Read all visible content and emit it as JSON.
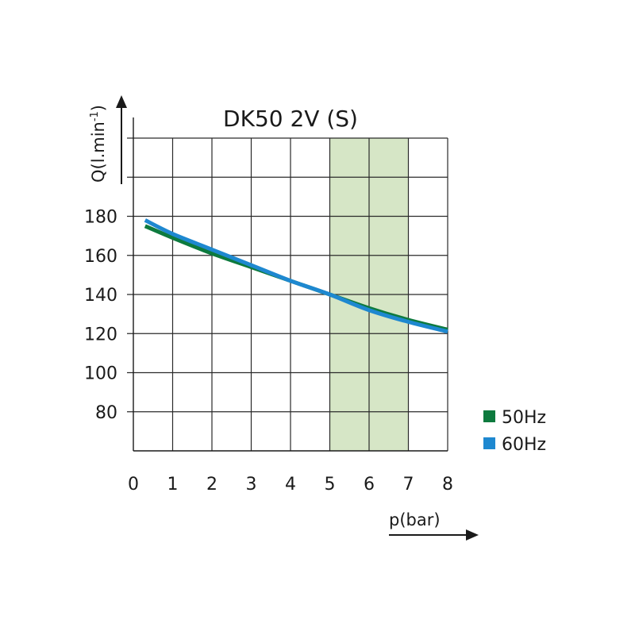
{
  "chart_data": {
    "type": "line",
    "title": "DK50 2V (S)",
    "ylabel": "Q(l.min",
    "ylabel_sup": "-1",
    "ylabel_close": ")",
    "xlabel": "p(bar)",
    "x_ticks": [
      "0",
      "1",
      "2",
      "3",
      "4",
      "5",
      "6",
      "7",
      "8"
    ],
    "y_ticks": [
      "80",
      "100",
      "120",
      "140",
      "160",
      "180"
    ],
    "xlim": [
      0,
      8
    ],
    "ylim": [
      60,
      220
    ],
    "grid": true,
    "highlight_band": {
      "x_from": 5,
      "x_to": 7,
      "color": "#d6e6c6"
    },
    "legend_position": "right",
    "series": [
      {
        "name": "50Hz",
        "color": "#0d7a3e",
        "x": [
          0.3,
          1,
          2,
          3,
          4,
          5,
          6,
          7,
          8
        ],
        "y": [
          175,
          169,
          161,
          154,
          147,
          140,
          133,
          127,
          122
        ]
      },
      {
        "name": "60Hz",
        "color": "#1e88d0",
        "x": [
          0.3,
          1,
          2,
          3,
          4,
          5,
          6,
          7,
          8
        ],
        "y": [
          178,
          171,
          163,
          155,
          147,
          140,
          132,
          126,
          121
        ]
      }
    ]
  }
}
